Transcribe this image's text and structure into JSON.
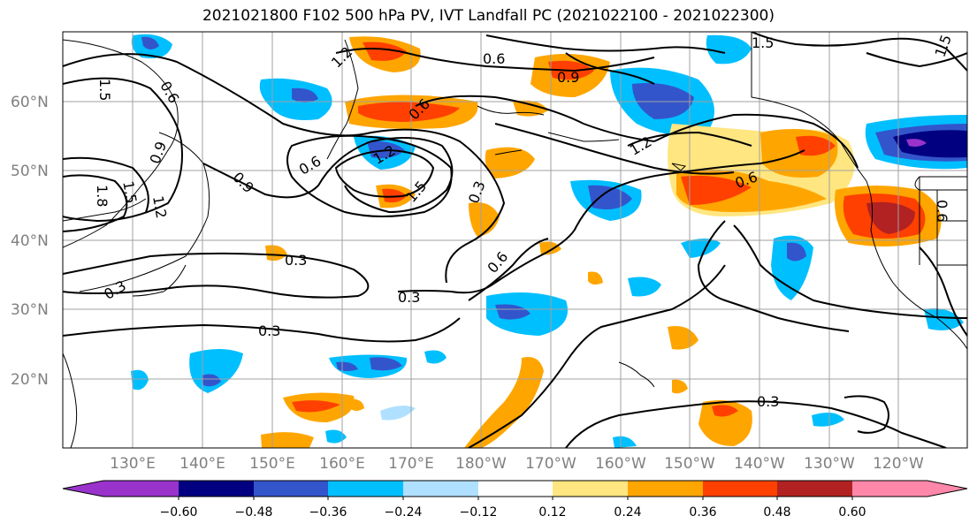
{
  "title": "2021021800 F102 500 hPa PV, IVT Landfall PC (2021022100 - 2021022300)",
  "lat_labels": [
    "60°N",
    "50°N",
    "40°N",
    "30°N",
    "20°N"
  ],
  "lon_labels": [
    "130°E",
    "140°E",
    "150°E",
    "160°E",
    "170°E",
    "180°W",
    "170°W",
    "160°W",
    "150°W",
    "140°W",
    "130°W",
    "120°W"
  ],
  "colorbar": {
    "ticks": [
      "−0.60",
      "−0.48",
      "−0.36",
      "−0.24",
      "−0.12",
      "0.12",
      "0.24",
      "0.36",
      "0.48",
      "0.60"
    ],
    "colors": [
      "#9933cc",
      "#000080",
      "#3355cc",
      "#00bfff",
      "#b0e0ff",
      "#ffffff",
      "#ffe680",
      "#ffa500",
      "#ff4000",
      "#b22222",
      "#ff88aa",
      "#ff88aa"
    ]
  },
  "contour_labels": [
    "1.2",
    "0.6",
    "1.5",
    "0.9",
    "1.5",
    "0.6",
    "1.2",
    "0.9",
    "1.2",
    "1.5",
    "0.6",
    "1.8",
    "1.2",
    "0.6",
    "0.9",
    "0.3",
    "0.3",
    "0.6",
    "0.3",
    "0.3",
    "0.3",
    "0.3",
    "0.6",
    "1.5",
    "1.5",
    "0.6"
  ],
  "colors": {
    "neg_light": "#b0e0ff",
    "neg_mid": "#00bfff",
    "neg_strong": "#3355cc",
    "neg_max": "#000080",
    "neg_extreme": "#9933cc",
    "pos_light": "#ffe680",
    "pos_mid": "#ffa500",
    "pos_strong": "#ff4000",
    "pos_max": "#b22222"
  }
}
